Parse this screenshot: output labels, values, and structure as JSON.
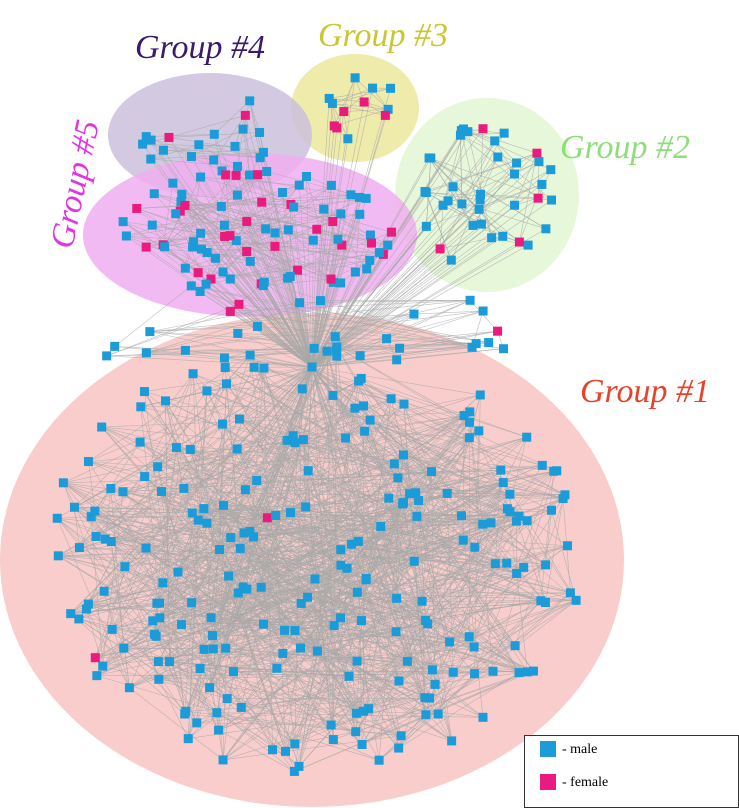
{
  "groups": [
    {
      "label": "Group #1",
      "color": "#e8432a",
      "fill": "#f7c4c2"
    },
    {
      "label": "Group #2",
      "color": "#8ede7a",
      "fill": "#e3f6d2"
    },
    {
      "label": "Group #3",
      "color": "#c9c735",
      "fill": "#ece79c"
    },
    {
      "label": "Group #4",
      "color": "#3b1a6e",
      "fill": "#cbc0da"
    },
    {
      "label": "Group #5",
      "color": "#e233e2",
      "fill": "#f0aef0"
    }
  ],
  "legend": [
    {
      "label": "- male",
      "color": "#1b9bd8"
    },
    {
      "label": "- female",
      "color": "#ea1a7e"
    }
  ]
}
